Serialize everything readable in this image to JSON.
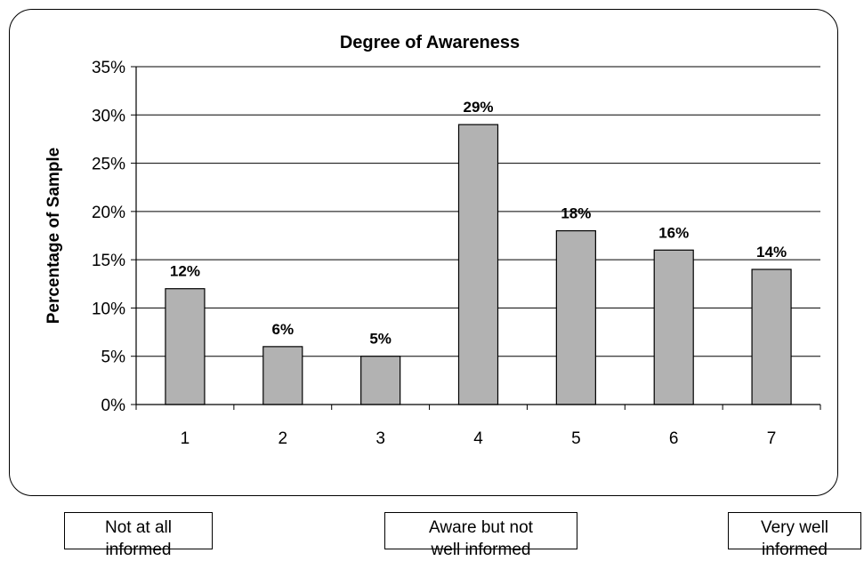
{
  "chart_data": {
    "type": "bar",
    "title": "Degree of Awareness",
    "xlabel": "",
    "ylabel": "Percentage of Sample",
    "categories": [
      "1",
      "2",
      "3",
      "4",
      "5",
      "6",
      "7"
    ],
    "values": [
      12,
      6,
      5,
      29,
      18,
      16,
      14
    ],
    "value_labels": [
      "12%",
      "6%",
      "5%",
      "29%",
      "18%",
      "16%",
      "14%"
    ],
    "y_ticks": [
      0,
      5,
      10,
      15,
      20,
      25,
      30,
      35
    ],
    "y_tick_labels": [
      "0%",
      "5%",
      "10%",
      "15%",
      "20%",
      "25%",
      "30%",
      "35%"
    ],
    "ylim": [
      0,
      35
    ],
    "grid": true,
    "bar_color": "#b2b2b2"
  },
  "scale_labels": {
    "low": "Not at all\ninformed",
    "mid": "Aware but not\nwell informed",
    "high": "Very well\ninformed"
  }
}
